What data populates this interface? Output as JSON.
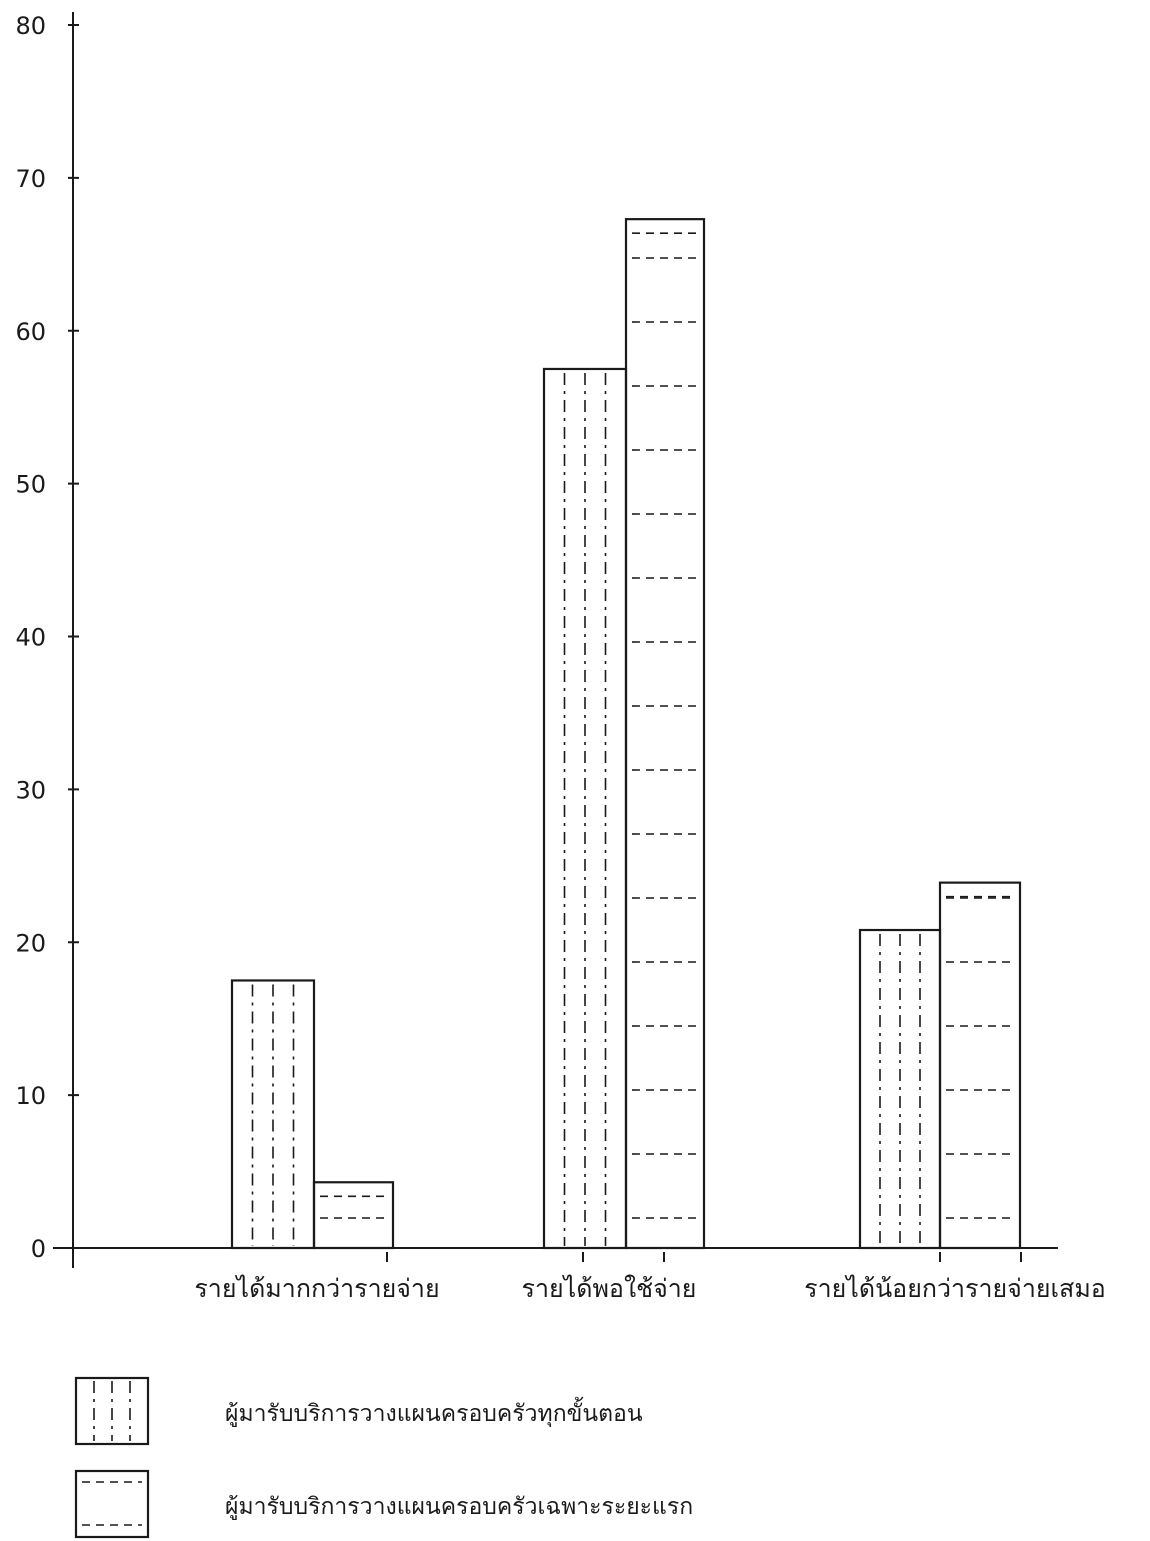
{
  "chart_data": {
    "type": "bar",
    "categories": [
      "รายได้มากกว่ารายจ่าย",
      "รายได้พอใช้จ่าย",
      "รายได้น้อยกว่ารายจ่ายเสมอ"
    ],
    "series": [
      {
        "name": "ผู้มารับบริการวางแผนครอบครัวทุกขั้นตอน",
        "pattern": "vertical-dash-dot",
        "values": [
          17.5,
          57.5,
          20.8
        ]
      },
      {
        "name": "ผู้มารับบริการวางแผนครอบครัวเฉพาะระยะแรก",
        "pattern": "horizontal-dashed",
        "values": [
          4.3,
          67.3,
          23.9
        ]
      }
    ],
    "ylim": [
      0,
      80
    ],
    "yticks": [
      "0",
      "10",
      "20",
      "30",
      "40",
      "50",
      "60",
      "70",
      "80"
    ],
    "grid": false,
    "legend_position": "bottom-left",
    "colors": {
      "ink": "#1a1a1a",
      "background": "#ffffff"
    }
  }
}
